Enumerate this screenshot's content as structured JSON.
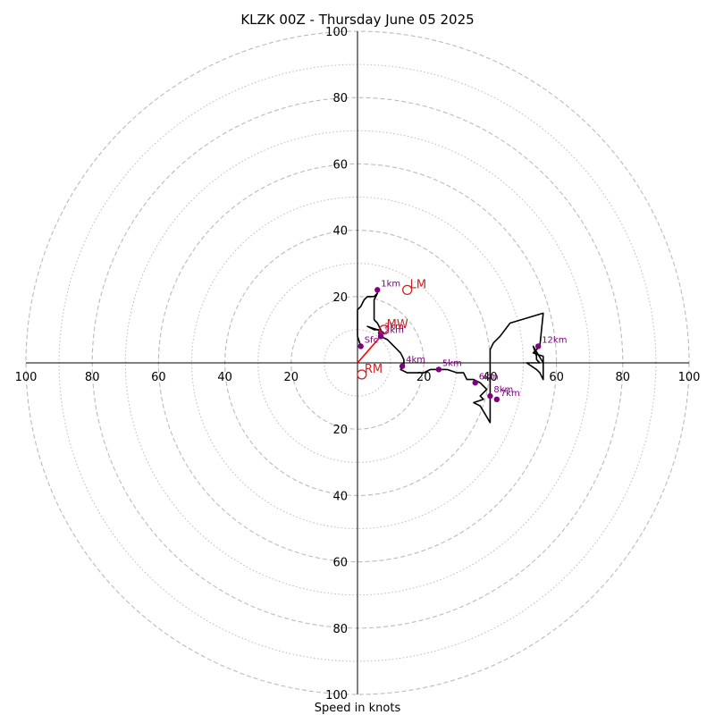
{
  "chart_data": {
    "type": "hodograph",
    "title": "KLZK 00Z - Thursday June 05 2025",
    "xlabel": "Speed in knots",
    "units": "knots",
    "radius_max": 100,
    "rings_major": [
      20,
      40,
      60,
      80,
      100
    ],
    "rings_minor": [
      10,
      30,
      50,
      70,
      90
    ],
    "ticks": {
      "x_left": [
        "100",
        "80",
        "60",
        "40",
        "20"
      ],
      "x_right": [
        "20",
        "40",
        "60",
        "80",
        "100"
      ],
      "y_top": [
        "100",
        "80",
        "60",
        "40",
        "20"
      ],
      "y_bottom": [
        "20",
        "40",
        "60",
        "80",
        "100"
      ]
    },
    "trace": [
      [
        1,
        5
      ],
      [
        0,
        8
      ],
      [
        0,
        11
      ],
      [
        0,
        13
      ],
      [
        0,
        16
      ],
      [
        1,
        17
      ],
      [
        2,
        19
      ],
      [
        3,
        20
      ],
      [
        5,
        20
      ],
      [
        6,
        21
      ],
      [
        5,
        19
      ],
      [
        5,
        17
      ],
      [
        5,
        15
      ],
      [
        5,
        13
      ],
      [
        6,
        12
      ],
      [
        7,
        10
      ],
      [
        5,
        10
      ],
      [
        3,
        11
      ],
      [
        6,
        10
      ],
      [
        8,
        9
      ],
      [
        7,
        8
      ],
      [
        9,
        7
      ],
      [
        10,
        6
      ],
      [
        11,
        5
      ],
      [
        12,
        4
      ],
      [
        13,
        3
      ],
      [
        14,
        1
      ],
      [
        14,
        -1
      ],
      [
        13,
        -2
      ],
      [
        15,
        -3
      ],
      [
        18,
        -3
      ],
      [
        20,
        -3
      ],
      [
        22,
        -2
      ],
      [
        24,
        -2
      ],
      [
        27,
        -2
      ],
      [
        30,
        -3
      ],
      [
        32,
        -3
      ],
      [
        33,
        -5
      ],
      [
        35,
        -5
      ],
      [
        37,
        -6
      ],
      [
        38,
        -7
      ],
      [
        39,
        -8
      ],
      [
        37,
        -10
      ],
      [
        38,
        -11
      ],
      [
        35,
        -12
      ],
      [
        37,
        -13
      ],
      [
        40,
        -18
      ],
      [
        40,
        -14
      ],
      [
        40,
        -11
      ],
      [
        40,
        -9
      ],
      [
        40,
        -7
      ],
      [
        40,
        -4
      ],
      [
        40,
        -2
      ],
      [
        40,
        0
      ],
      [
        40,
        3
      ],
      [
        40,
        4
      ],
      [
        41,
        6
      ],
      [
        43,
        8
      ],
      [
        46,
        12
      ],
      [
        56,
        15
      ],
      [
        55,
        5
      ],
      [
        53,
        3
      ],
      [
        56,
        2
      ],
      [
        56,
        0
      ],
      [
        53,
        5
      ],
      [
        54,
        2
      ],
      [
        54,
        1
      ],
      [
        55,
        0
      ],
      [
        52,
        0
      ],
      [
        51,
        0
      ],
      [
        54,
        -2
      ],
      [
        55,
        -3
      ],
      [
        56,
        -5
      ],
      [
        56,
        -4
      ],
      [
        56,
        2
      ]
    ],
    "height_markers": [
      {
        "label": "Sfc",
        "x": 1,
        "y": 5
      },
      {
        "label": "1km",
        "x": 6,
        "y": 22
      },
      {
        "label": "2km",
        "x": 7,
        "y": 8
      },
      {
        "label": "3km",
        "x": 7,
        "y": 9
      },
      {
        "label": "4km",
        "x": 13.5,
        "y": -1
      },
      {
        "label": "5km",
        "x": 24.5,
        "y": -2
      },
      {
        "label": "6km",
        "x": 35.5,
        "y": -6
      },
      {
        "label": "7km",
        "x": 42,
        "y": -11
      },
      {
        "label": "8km",
        "x": 40,
        "y": -10
      },
      {
        "label": "12km",
        "x": 54.5,
        "y": 5
      }
    ],
    "storm_motion": [
      {
        "label": "LM",
        "x": 15,
        "y": 22
      },
      {
        "label": "MW",
        "x": 8,
        "y": 10
      },
      {
        "label": "RM",
        "x": 1.3,
        "y": -3.5
      }
    ],
    "shear_vector": {
      "from": [
        0,
        0
      ],
      "to": [
        7,
        8
      ]
    },
    "colors": {
      "trace": "#000000",
      "height_marker": "#800080",
      "storm_motion": "#cc2222",
      "shear_vector": "#ff0000",
      "rings": "#bbbbbb"
    }
  }
}
